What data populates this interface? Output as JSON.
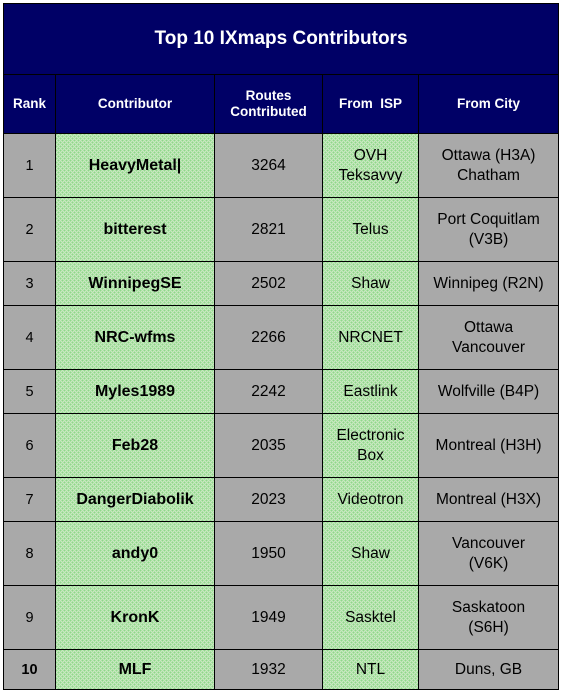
{
  "title": "Top 10 IXmaps Contributors",
  "headers": {
    "rank": "Rank",
    "contributor": "Contributor",
    "routes_line1": "Routes",
    "routes_line2": "Contributed",
    "isp": "From  ISP",
    "city": "From City"
  },
  "rows": [
    {
      "rank": "1",
      "contributor": "HeavyMetal|",
      "routes": "3264",
      "isp": [
        "OVH",
        "Teksavvy"
      ],
      "city": [
        "Ottawa (H3A)",
        "Chatham"
      ],
      "height": 64
    },
    {
      "rank": "2",
      "contributor": "bitterest",
      "routes": "2821",
      "isp": [
        "Telus"
      ],
      "city": [
        "Port Coquitlam",
        "(V3B)"
      ],
      "height": 64
    },
    {
      "rank": "3",
      "contributor": "WinnipegSE",
      "routes": "2502",
      "isp": [
        "Shaw"
      ],
      "city": [
        "Winnipeg (R2N)"
      ],
      "height": 44
    },
    {
      "rank": "4",
      "contributor": "NRC-wfms",
      "routes": "2266",
      "isp": [
        "NRCNET"
      ],
      "city": [
        "Ottawa",
        "Vancouver"
      ],
      "height": 64
    },
    {
      "rank": "5",
      "contributor": "Myles1989",
      "routes": "2242",
      "isp": [
        "Eastlink"
      ],
      "city": [
        "Wolfville (B4P)"
      ],
      "height": 44
    },
    {
      "rank": "6",
      "contributor": "Feb28",
      "routes": "2035",
      "isp": [
        "Electronic",
        "Box"
      ],
      "city": [
        "Montreal (H3H)"
      ],
      "height": 64
    },
    {
      "rank": "7",
      "contributor": "DangerDiabolik",
      "routes": "2023",
      "isp": [
        "Videotron"
      ],
      "city": [
        "Montreal (H3X)"
      ],
      "height": 44
    },
    {
      "rank": "8",
      "contributor": "andy0",
      "routes": "1950",
      "isp": [
        "Shaw"
      ],
      "city": [
        "Vancouver",
        "(V6K)"
      ],
      "height": 64
    },
    {
      "rank": "9",
      "contributor": "KronK",
      "routes": "1949",
      "isp": [
        "Sasktel"
      ],
      "city": [
        "Saskatoon",
        "(S6H)"
      ],
      "height": 64
    },
    {
      "rank": "10",
      "contributor": "MLF",
      "routes": "1932",
      "isp": [
        "NTL"
      ],
      "city": [
        "Duns, GB"
      ],
      "height": 40,
      "rank_bold": true
    }
  ]
}
